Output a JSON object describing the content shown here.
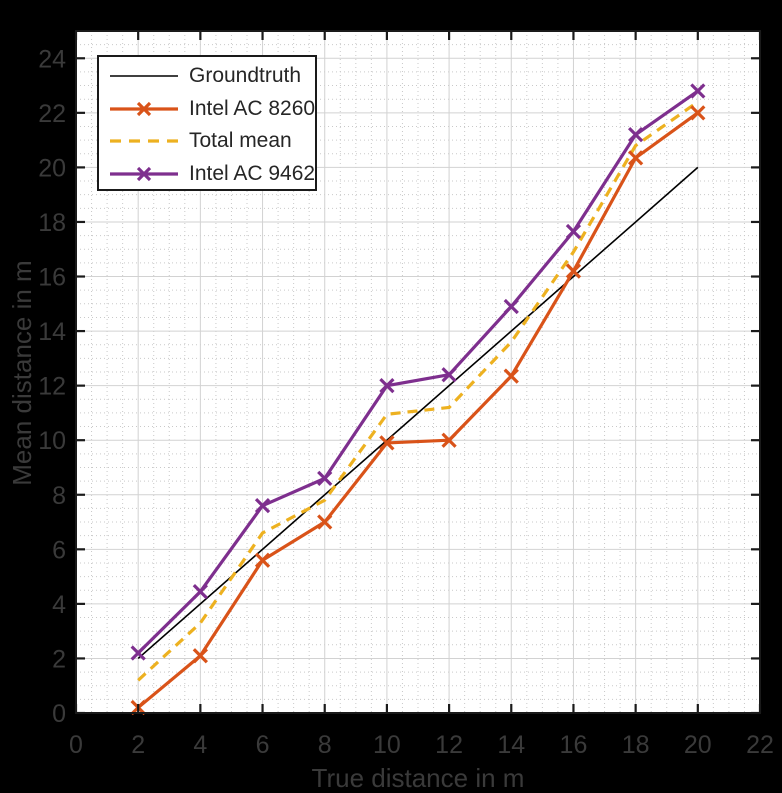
{
  "figure": {
    "background": "#000000",
    "plot_background": "#ffffff",
    "axis_color": "#1a1a1a",
    "tick_label_color": "#3a3a3a",
    "grid_major_color": "#d2d2d2",
    "grid_minor_color": "#c9c9c9",
    "legend_text_color": "#262626"
  },
  "chart_data": {
    "type": "line",
    "title": "",
    "xlabel": "True distance in m",
    "ylabel": "Mean distance in m",
    "xlim": [
      0,
      22
    ],
    "ylim": [
      0,
      25
    ],
    "xticks": [
      0,
      2,
      4,
      6,
      8,
      10,
      12,
      14,
      16,
      18,
      20,
      22
    ],
    "yticks": [
      0,
      2,
      4,
      6,
      8,
      10,
      12,
      14,
      16,
      18,
      20,
      22,
      24
    ],
    "grid": "major+minor",
    "minor_step": 0.5,
    "legend_position": "top-left",
    "x": [
      2,
      4,
      6,
      8,
      10,
      12,
      14,
      16,
      18,
      20
    ],
    "series": [
      {
        "name": "Groundtruth",
        "color": "#000000",
        "style": "solid",
        "line_width": 1.6,
        "marker": "none",
        "x": [
          2,
          20
        ],
        "values": [
          2,
          20
        ]
      },
      {
        "name": "Intel AC 8260",
        "color": "#D95319",
        "style": "solid",
        "line_width": 3.2,
        "marker": "x",
        "x": [
          2,
          4,
          6,
          8,
          10,
          12,
          14,
          16,
          18,
          20
        ],
        "values": [
          0.2,
          2.1,
          5.6,
          7.0,
          9.9,
          10.0,
          12.35,
          16.2,
          20.35,
          22.0
        ]
      },
      {
        "name": "Total mean",
        "color": "#EDB120",
        "style": "dashed",
        "line_width": 3.2,
        "marker": "none",
        "x": [
          2,
          4,
          6,
          8,
          10,
          12,
          14,
          16,
          18,
          20
        ],
        "values": [
          1.2,
          3.3,
          6.6,
          7.8,
          10.95,
          11.2,
          13.6,
          16.9,
          20.8,
          22.4
        ]
      },
      {
        "name": "Intel AC 9462",
        "color": "#7E2F8E",
        "style": "solid",
        "line_width": 3.2,
        "marker": "x",
        "x": [
          2,
          4,
          6,
          8,
          10,
          12,
          14,
          16,
          18,
          20
        ],
        "values": [
          2.2,
          4.45,
          7.6,
          8.6,
          12.0,
          12.4,
          14.9,
          17.65,
          21.2,
          22.8
        ]
      }
    ],
    "draw_order": [
      0,
      2,
      1,
      3
    ],
    "legend_order": [
      0,
      1,
      2,
      3
    ]
  }
}
